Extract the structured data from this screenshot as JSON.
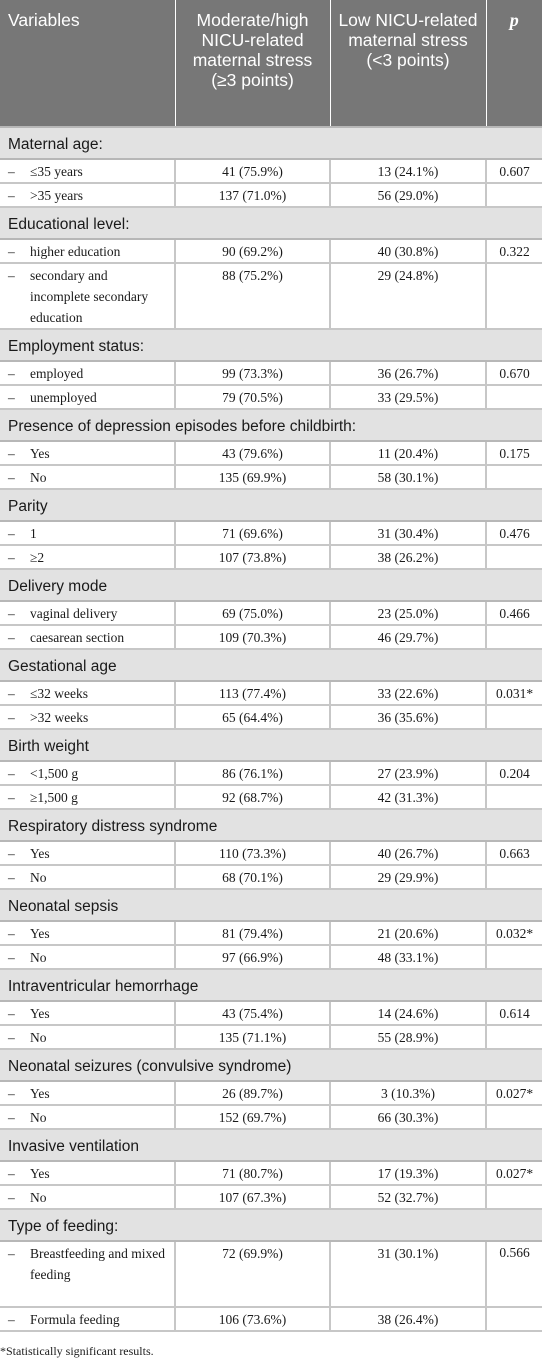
{
  "header": {
    "col_variables": "Variables",
    "col_moderate": "Moderate/high NICU-related maternal stress (≥3 points)",
    "col_low": "Low NICU-related maternal stress (<3 points)",
    "col_p": "p"
  },
  "sections": [
    {
      "title": "Maternal age:",
      "rows": [
        {
          "label": "≤35 years",
          "moderate": "41 (75.9%)",
          "low": "13 (24.1%)",
          "p": "0.607"
        },
        {
          "label": ">35 years",
          "moderate": "137 (71.0%)",
          "low": "56 (29.0%)",
          "p": ""
        }
      ]
    },
    {
      "title": "Educational level:",
      "rows": [
        {
          "label": "higher education",
          "moderate": "90 (69.2%)",
          "low": "40 (30.8%)",
          "p": "0.322"
        },
        {
          "label": "secondary and incomplete secondary education",
          "moderate": "88 (75.2%)",
          "low": "29 (24.8%)",
          "p": ""
        }
      ]
    },
    {
      "title": "Employment status:",
      "rows": [
        {
          "label": "employed",
          "moderate": "99 (73.3%)",
          "low": "36 (26.7%)",
          "p": "0.670"
        },
        {
          "label": "unemployed",
          "moderate": "79 (70.5%)",
          "low": "33 (29.5%)",
          "p": ""
        }
      ]
    },
    {
      "title": "Presence of depression episodes before childbirth:",
      "rows": [
        {
          "label": "Yes",
          "moderate": "43 (79.6%)",
          "low": "11 (20.4%)",
          "p": "0.175"
        },
        {
          "label": "No",
          "moderate": "135 (69.9%)",
          "low": "58 (30.1%)",
          "p": ""
        }
      ]
    },
    {
      "title": "Parity",
      "rows": [
        {
          "label": "1",
          "moderate": "71 (69.6%)",
          "low": "31 (30.4%)",
          "p": "0.476"
        },
        {
          "label": "≥2",
          "moderate": "107 (73.8%)",
          "low": "38 (26.2%)",
          "p": ""
        }
      ]
    },
    {
      "title": "Delivery mode",
      "rows": [
        {
          "label": "vaginal delivery",
          "moderate": "69 (75.0%)",
          "low": "23 (25.0%)",
          "p": "0.466"
        },
        {
          "label": "caesarean section",
          "moderate": "109 (70.3%)",
          "low": "46 (29.7%)",
          "p": ""
        }
      ]
    },
    {
      "title": "Gestational age",
      "rows": [
        {
          "label": "≤32 weeks",
          "moderate": "113 (77.4%)",
          "low": "33 (22.6%)",
          "p": "0.031*"
        },
        {
          "label": ">32 weeks",
          "moderate": "65 (64.4%)",
          "low": "36 (35.6%)",
          "p": ""
        }
      ]
    },
    {
      "title": "Birth weight",
      "rows": [
        {
          "label": "<1,500 g",
          "moderate": "86 (76.1%)",
          "low": "27 (23.9%)",
          "p": "0.204"
        },
        {
          "label": "≥1,500 g",
          "moderate": "92 (68.7%)",
          "low": "42 (31.3%)",
          "p": ""
        }
      ]
    },
    {
      "title": "Respiratory distress syndrome",
      "rows": [
        {
          "label": "Yes",
          "moderate": "110 (73.3%)",
          "low": "40 (26.7%)",
          "p": "0.663"
        },
        {
          "label": "No",
          "moderate": "68 (70.1%)",
          "low": "29 (29.9%)",
          "p": ""
        }
      ]
    },
    {
      "title": "Neonatal sepsis",
      "rows": [
        {
          "label": "Yes",
          "moderate": "81 (79.4%)",
          "low": "21 (20.6%)",
          "p": "0.032*"
        },
        {
          "label": "No",
          "moderate": "97 (66.9%)",
          "low": "48 (33.1%)",
          "p": ""
        }
      ]
    },
    {
      "title": "Intraventricular hemorrhage",
      "rows": [
        {
          "label": "Yes",
          "moderate": "43 (75.4%)",
          "low": "14 (24.6%)",
          "p": "0.614"
        },
        {
          "label": "No",
          "moderate": "135 (71.1%)",
          "low": "55 (28.9%)",
          "p": ""
        }
      ]
    },
    {
      "title": "Neonatal seizures (convulsive syndrome)",
      "rows": [
        {
          "label": "Yes",
          "moderate": "26 (89.7%)",
          "low": "3 (10.3%)",
          "p": "0.027*"
        },
        {
          "label": "No",
          "moderate": "152 (69.7%)",
          "low": "66 (30.3%)",
          "p": ""
        }
      ]
    },
    {
      "title": "Invasive ventilation",
      "rows": [
        {
          "label": "Yes",
          "moderate": "71 (80.7%)",
          "low": "17 (19.3%)",
          "p": "0.027*"
        },
        {
          "label": "No",
          "moderate": "107 (67.3%)",
          "low": "52 (32.7%)",
          "p": ""
        }
      ]
    },
    {
      "title": "Type of feeding:",
      "rows": [
        {
          "label": "Breastfeeding and mixed feeding",
          "moderate": "72 (69.9%)",
          "low": "31 (30.1%)",
          "p": "0.566"
        },
        {
          "label": "Formula feeding",
          "moderate": "106 (73.6%)",
          "low": "38 (26.4%)",
          "p": ""
        }
      ]
    }
  ],
  "dash": "–",
  "footnote": "*Statistically significant results."
}
